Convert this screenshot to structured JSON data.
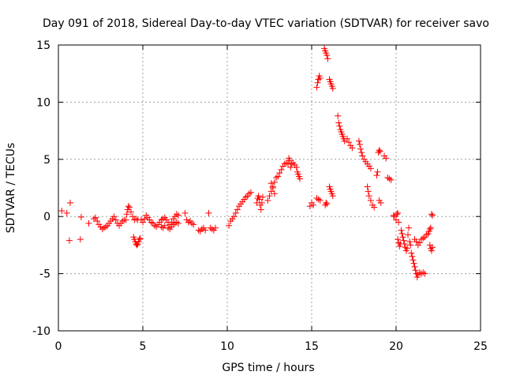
{
  "chart_data": {
    "type": "scatter",
    "title": "Day 091 of 2018, Sidereal Day-to-day VTEC variation (SDTVAR) for receiver savo",
    "xlabel": "GPS time / hours",
    "ylabel": "SDTVAR / TECUs",
    "xlim": [
      0,
      25
    ],
    "ylim": [
      -10,
      15
    ],
    "grid": true,
    "marker": "+",
    "marker_color": "#ff0000",
    "xticks": [
      0,
      5,
      10,
      15,
      20,
      25
    ],
    "xtick_labels": [
      "0",
      "5",
      "10",
      "15",
      "20",
      "25"
    ],
    "yticks": [
      -10,
      -5,
      0,
      5,
      10,
      15
    ],
    "ytick_labels": [
      "-10",
      "-5",
      "0",
      "5",
      "10",
      "15"
    ],
    "series": [
      {
        "name": "SDTVAR",
        "points": [
          [
            0.2,
            0.5
          ],
          [
            0.5,
            0.3
          ],
          [
            0.7,
            1.2
          ],
          [
            0.65,
            -2.1
          ],
          [
            1.35,
            -0.05
          ],
          [
            1.3,
            -2.0
          ],
          [
            1.8,
            -0.6
          ],
          [
            2.1,
            -0.2
          ],
          [
            2.2,
            -0.1
          ],
          [
            2.3,
            -0.4
          ],
          [
            2.4,
            -0.7
          ],
          [
            2.5,
            -0.9
          ],
          [
            2.6,
            -1.1
          ],
          [
            2.7,
            -1.0
          ],
          [
            2.8,
            -0.9
          ],
          [
            2.9,
            -0.8
          ],
          [
            3.0,
            -0.6
          ],
          [
            3.1,
            -0.4
          ],
          [
            3.2,
            -0.2
          ],
          [
            3.3,
            0.0
          ],
          [
            3.4,
            -0.3
          ],
          [
            3.5,
            -0.6
          ],
          [
            3.6,
            -0.8
          ],
          [
            3.7,
            -0.6
          ],
          [
            3.8,
            -0.4
          ],
          [
            3.9,
            -0.3
          ],
          [
            4.0,
            -0.3
          ],
          [
            4.05,
            0.2
          ],
          [
            4.1,
            0.6
          ],
          [
            4.15,
            0.9
          ],
          [
            4.2,
            0.8
          ],
          [
            4.3,
            0.4
          ],
          [
            4.4,
            0.0
          ],
          [
            4.5,
            -0.3
          ],
          [
            4.6,
            -0.2
          ],
          [
            4.7,
            -0.3
          ],
          [
            4.45,
            -1.8
          ],
          [
            4.5,
            -2.0
          ],
          [
            4.55,
            -2.2
          ],
          [
            4.6,
            -2.4
          ],
          [
            4.65,
            -2.5
          ],
          [
            4.7,
            -2.4
          ],
          [
            4.75,
            -2.2
          ],
          [
            4.8,
            -2.0
          ],
          [
            4.85,
            -1.9
          ],
          [
            4.9,
            -0.3
          ],
          [
            5.0,
            -0.5
          ],
          [
            5.1,
            -0.2
          ],
          [
            5.2,
            0.1
          ],
          [
            5.3,
            -0.1
          ],
          [
            5.4,
            -0.3
          ],
          [
            5.5,
            -0.5
          ],
          [
            5.6,
            -0.6
          ],
          [
            5.7,
            -0.8
          ],
          [
            5.8,
            -0.9
          ],
          [
            5.9,
            -0.7
          ],
          [
            6.0,
            -0.5
          ],
          [
            6.1,
            -0.3
          ],
          [
            6.2,
            -0.2
          ],
          [
            6.3,
            -0.1
          ],
          [
            6.4,
            -0.3
          ],
          [
            6.5,
            -0.5
          ],
          [
            6.6,
            -0.7
          ],
          [
            6.7,
            -0.5
          ],
          [
            6.8,
            -0.2
          ],
          [
            6.9,
            0.0
          ],
          [
            7.0,
            0.2
          ],
          [
            7.1,
            0.1
          ],
          [
            6.1,
            -0.9
          ],
          [
            6.2,
            -1.0
          ],
          [
            6.3,
            -0.8
          ],
          [
            6.5,
            -1.0
          ],
          [
            6.6,
            -1.1
          ],
          [
            6.7,
            -0.9
          ],
          [
            6.8,
            -0.7
          ],
          [
            6.9,
            -0.6
          ],
          [
            7.0,
            -0.5
          ],
          [
            7.1,
            -0.6
          ],
          [
            7.5,
            0.3
          ],
          [
            7.6,
            -0.3
          ],
          [
            7.7,
            -0.5
          ],
          [
            7.8,
            -0.4
          ],
          [
            7.9,
            -0.6
          ],
          [
            8.0,
            -0.7
          ],
          [
            8.3,
            -1.2
          ],
          [
            8.4,
            -1.3
          ],
          [
            8.5,
            -1.1
          ],
          [
            8.6,
            -1.0
          ],
          [
            8.7,
            -1.2
          ],
          [
            8.9,
            0.3
          ],
          [
            9.0,
            -1.0
          ],
          [
            9.1,
            -1.1
          ],
          [
            9.2,
            -1.2
          ],
          [
            9.3,
            -1.0
          ],
          [
            10.1,
            -0.8
          ],
          [
            10.2,
            -0.4
          ],
          [
            10.3,
            -0.2
          ],
          [
            10.4,
            0.0
          ],
          [
            10.5,
            0.3
          ],
          [
            10.6,
            0.6
          ],
          [
            10.7,
            0.9
          ],
          [
            10.8,
            1.1
          ],
          [
            10.9,
            1.3
          ],
          [
            11.0,
            1.5
          ],
          [
            11.1,
            1.7
          ],
          [
            11.2,
            1.8
          ],
          [
            11.3,
            2.0
          ],
          [
            11.4,
            2.1
          ],
          [
            11.75,
            1.2
          ],
          [
            11.8,
            1.6
          ],
          [
            11.85,
            1.8
          ],
          [
            11.9,
            1.5
          ],
          [
            11.95,
            1.0
          ],
          [
            12.0,
            0.6
          ],
          [
            12.05,
            1.2
          ],
          [
            12.1,
            1.7
          ],
          [
            12.4,
            1.4
          ],
          [
            12.5,
            1.8
          ],
          [
            12.6,
            2.2
          ],
          [
            12.7,
            2.6
          ],
          [
            12.8,
            3.0
          ],
          [
            12.9,
            3.4
          ],
          [
            12.6,
            2.9
          ],
          [
            12.7,
            2.5
          ],
          [
            12.8,
            2.0
          ],
          [
            13.0,
            3.5
          ],
          [
            13.1,
            3.8
          ],
          [
            13.2,
            4.1
          ],
          [
            13.3,
            4.4
          ],
          [
            13.4,
            4.6
          ],
          [
            13.5,
            4.7
          ],
          [
            13.6,
            4.6
          ],
          [
            13.65,
            5.1
          ],
          [
            13.7,
            4.9
          ],
          [
            13.75,
            4.3
          ],
          [
            13.8,
            4.6
          ],
          [
            13.9,
            4.7
          ],
          [
            14.0,
            4.5
          ],
          [
            14.1,
            4.3
          ],
          [
            14.15,
            3.9
          ],
          [
            14.2,
            3.7
          ],
          [
            14.25,
            3.5
          ],
          [
            14.3,
            3.3
          ],
          [
            14.9,
            0.9
          ],
          [
            15.0,
            1.2
          ],
          [
            15.1,
            1.0
          ],
          [
            15.3,
            1.6
          ],
          [
            15.4,
            1.5
          ],
          [
            15.5,
            1.4
          ],
          [
            15.3,
            11.3
          ],
          [
            15.35,
            11.7
          ],
          [
            15.4,
            12.0
          ],
          [
            15.45,
            12.3
          ],
          [
            15.5,
            12.1
          ],
          [
            15.75,
            14.7
          ],
          [
            15.8,
            14.5
          ],
          [
            15.85,
            14.3
          ],
          [
            15.9,
            14.1
          ],
          [
            15.95,
            13.8
          ],
          [
            15.8,
            1.0
          ],
          [
            15.85,
            1.2
          ],
          [
            15.9,
            1.1
          ],
          [
            16.05,
            12.0
          ],
          [
            16.1,
            11.8
          ],
          [
            16.15,
            11.6
          ],
          [
            16.2,
            11.4
          ],
          [
            16.25,
            11.2
          ],
          [
            16.05,
            2.6
          ],
          [
            16.1,
            2.4
          ],
          [
            16.15,
            2.2
          ],
          [
            16.2,
            2.0
          ],
          [
            16.25,
            1.8
          ],
          [
            16.55,
            8.8
          ],
          [
            16.6,
            8.2
          ],
          [
            16.65,
            7.9
          ],
          [
            16.7,
            7.6
          ],
          [
            16.75,
            7.4
          ],
          [
            16.8,
            7.2
          ],
          [
            16.85,
            7.0
          ],
          [
            16.9,
            6.8
          ],
          [
            16.95,
            6.6
          ],
          [
            17.1,
            6.8
          ],
          [
            17.2,
            6.5
          ],
          [
            17.3,
            6.2
          ],
          [
            17.4,
            6.0
          ],
          [
            17.8,
            6.6
          ],
          [
            17.85,
            6.3
          ],
          [
            17.9,
            5.9
          ],
          [
            17.95,
            5.6
          ],
          [
            18.0,
            5.3
          ],
          [
            18.1,
            5.0
          ],
          [
            18.2,
            4.8
          ],
          [
            18.3,
            4.6
          ],
          [
            18.4,
            4.4
          ],
          [
            18.5,
            4.2
          ],
          [
            18.3,
            2.6
          ],
          [
            18.35,
            2.2
          ],
          [
            18.4,
            1.8
          ],
          [
            18.5,
            1.4
          ],
          [
            18.6,
            1.0
          ],
          [
            18.7,
            0.8
          ],
          [
            18.85,
            3.6
          ],
          [
            18.9,
            3.9
          ],
          [
            18.95,
            5.6
          ],
          [
            19.0,
            5.8
          ],
          [
            19.05,
            5.7
          ],
          [
            19.3,
            5.3
          ],
          [
            19.4,
            5.1
          ],
          [
            19.5,
            3.4
          ],
          [
            19.6,
            3.3
          ],
          [
            19.7,
            3.2
          ],
          [
            19.0,
            1.4
          ],
          [
            19.1,
            1.2
          ],
          [
            19.85,
            0.1
          ],
          [
            19.9,
            0.0
          ],
          [
            20.0,
            -0.3
          ],
          [
            20.05,
            0.2
          ],
          [
            20.1,
            0.3
          ],
          [
            20.15,
            -0.5
          ],
          [
            20.1,
            -2.0
          ],
          [
            20.15,
            -2.3
          ],
          [
            20.2,
            -2.6
          ],
          [
            20.25,
            -2.4
          ],
          [
            20.3,
            -1.2
          ],
          [
            20.35,
            -1.5
          ],
          [
            20.4,
            -1.8
          ],
          [
            20.45,
            -2.1
          ],
          [
            20.5,
            -2.4
          ],
          [
            20.55,
            -2.7
          ],
          [
            20.6,
            -3.0
          ],
          [
            20.65,
            -2.8
          ],
          [
            20.7,
            -1.6
          ],
          [
            20.75,
            -1.0
          ],
          [
            20.8,
            -2.2
          ],
          [
            20.85,
            -2.5
          ],
          [
            20.9,
            -3.2
          ],
          [
            20.95,
            -3.5
          ],
          [
            21.0,
            -3.8
          ],
          [
            21.05,
            -4.1
          ],
          [
            21.1,
            -4.4
          ],
          [
            21.15,
            -4.7
          ],
          [
            21.2,
            -5.0
          ],
          [
            21.25,
            -5.3
          ],
          [
            21.3,
            -5.1
          ],
          [
            21.1,
            -2.0
          ],
          [
            21.2,
            -2.2
          ],
          [
            21.3,
            -2.5
          ],
          [
            21.4,
            -2.3
          ],
          [
            21.5,
            -2.0
          ],
          [
            21.6,
            -1.9
          ],
          [
            21.7,
            -1.8
          ],
          [
            21.8,
            -1.6
          ],
          [
            21.4,
            -4.9
          ],
          [
            21.5,
            -5.0
          ],
          [
            21.6,
            -4.9
          ],
          [
            21.7,
            -5.0
          ],
          [
            21.9,
            -1.5
          ],
          [
            21.95,
            -1.3
          ],
          [
            22.0,
            -1.1
          ],
          [
            22.05,
            -1.0
          ],
          [
            22.1,
            0.2
          ],
          [
            22.15,
            0.1
          ],
          [
            22.0,
            -2.5
          ],
          [
            22.05,
            -2.8
          ],
          [
            22.1,
            -3.0
          ],
          [
            22.15,
            -2.7
          ]
        ]
      }
    ]
  }
}
